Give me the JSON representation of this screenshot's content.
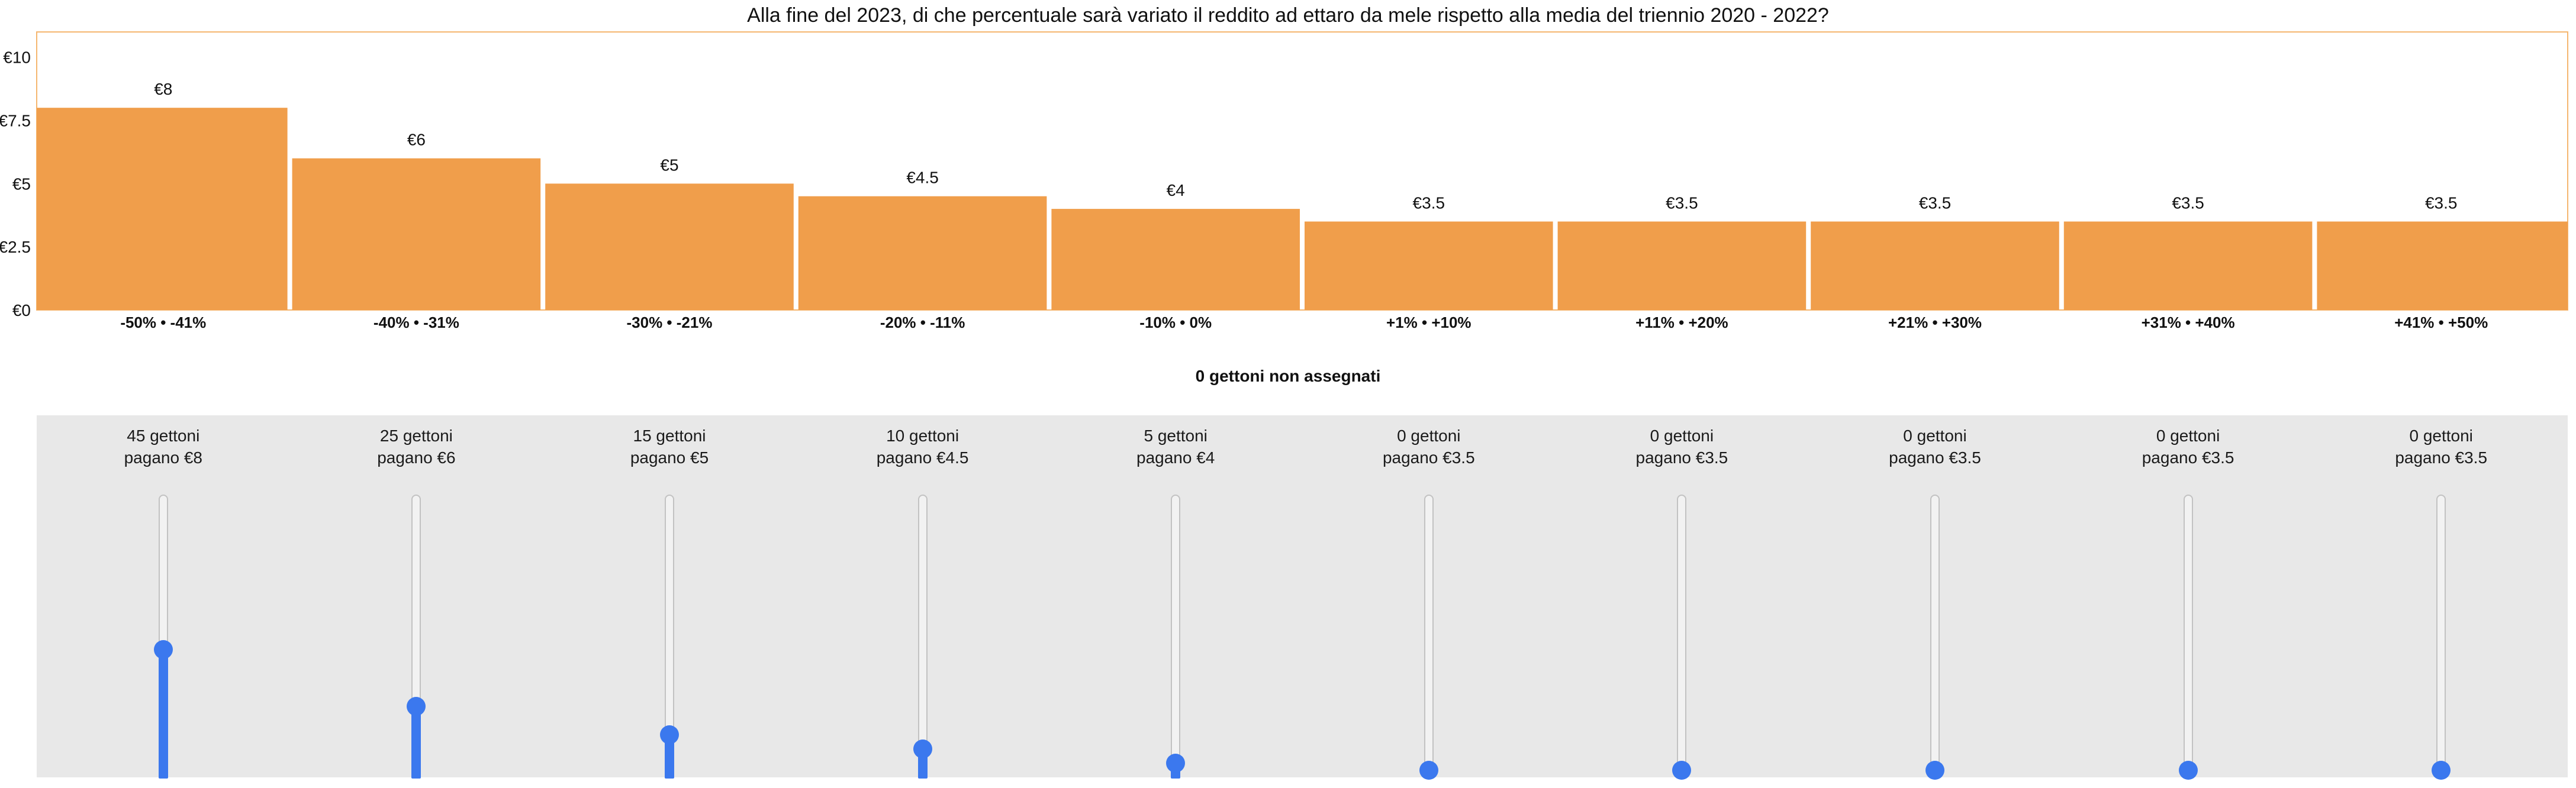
{
  "chart_data": {
    "type": "bar",
    "title": "Alla fine del 2023, di che percentuale sarà variato il reddito ad ettaro da mele rispetto alla media del triennio 2020 - 2022?",
    "categories": [
      "-50% • -41%",
      "-40% • -31%",
      "-30% • -21%",
      "-20% • -11%",
      "-10% • 0%",
      "+1% • +10%",
      "+11% • +20%",
      "+21% • +30%",
      "+31% • +40%",
      "+41% • +50%"
    ],
    "values": [
      8,
      6,
      5,
      4.5,
      4,
      3.5,
      3.5,
      3.5,
      3.5,
      3.5
    ],
    "data_labels": [
      "€8",
      "€6",
      "€5",
      "€4.5",
      "€4",
      "€3.5",
      "€3.5",
      "€3.5",
      "€3.5",
      "€3.5"
    ],
    "yticks": [
      0,
      2.5,
      5,
      7.5,
      10
    ],
    "ytick_labels": [
      "€0",
      "€2.5",
      "€5",
      "€7.5",
      "€10"
    ],
    "ylim": [
      0,
      11
    ],
    "xlabel": "",
    "ylabel": "",
    "grid": false,
    "bar_color": "#f09e4b",
    "frame_color": "#f5b66f"
  },
  "tokens": {
    "unassigned_label": "0 gettoni non assegnati",
    "max": 100,
    "items": [
      {
        "line1": "45 gettoni",
        "line2": "pagano €8",
        "value": 45
      },
      {
        "line1": "25 gettoni",
        "line2": "pagano €6",
        "value": 25
      },
      {
        "line1": "15 gettoni",
        "line2": "pagano €5",
        "value": 15
      },
      {
        "line1": "10 gettoni",
        "line2": "pagano €4.5",
        "value": 10
      },
      {
        "line1": "5 gettoni",
        "line2": "pagano €4",
        "value": 5
      },
      {
        "line1": "0 gettoni",
        "line2": "pagano €3.5",
        "value": 0
      },
      {
        "line1": "0 gettoni",
        "line2": "pagano €3.5",
        "value": 0
      },
      {
        "line1": "0 gettoni",
        "line2": "pagano €3.5",
        "value": 0
      },
      {
        "line1": "0 gettoni",
        "line2": "pagano €3.5",
        "value": 0
      },
      {
        "line1": "0 gettoni",
        "line2": "pagano €3.5",
        "value": 0
      }
    ],
    "slider_color": "#3b78ee"
  }
}
